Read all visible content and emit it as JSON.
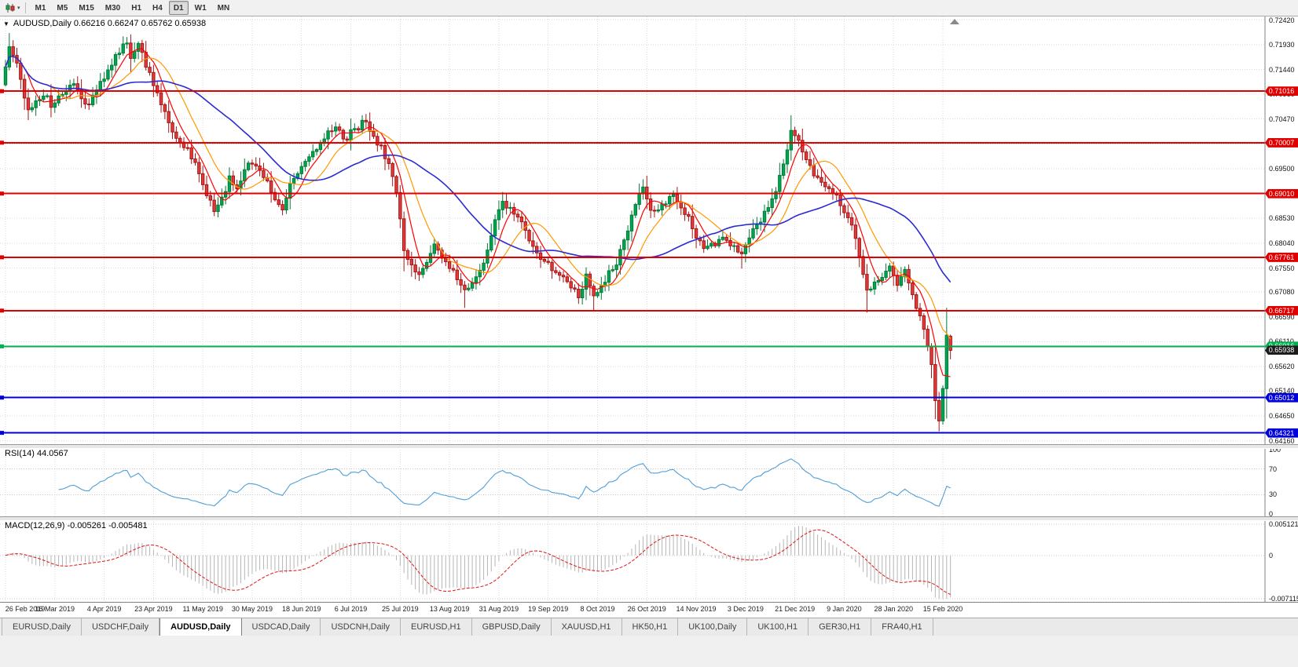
{
  "toolbar": {
    "timeframes": [
      "M1",
      "M5",
      "M15",
      "M30",
      "H1",
      "H4",
      "D1",
      "W1",
      "MN"
    ],
    "active_timeframe": "D1"
  },
  "icons": {
    "chart_menu": "▼",
    "tool_caret": "▾"
  },
  "chart_data": {
    "type": "candlestick",
    "symbol": "AUDUSD",
    "period": "Daily",
    "title": "AUDUSD,Daily 0.66216 0.66247 0.65762 0.65938",
    "ylim": [
      0.641,
      0.7248
    ],
    "num_candles": 250,
    "candles_per_x_label": 13,
    "x_labels": [
      "26 Feb 2019",
      "16 Mar 2019",
      "4 Apr 2019",
      "23 Apr 2019",
      "11 May 2019",
      "30 May 2019",
      "18 Jun 2019",
      "6 Jul 2019",
      "25 Jul 2019",
      "13 Aug 2019",
      "31 Aug 2019",
      "19 Sep 2019",
      "8 Oct 2019",
      "26 Oct 2019",
      "14 Nov 2019",
      "3 Dec 2019",
      "21 Dec 2019",
      "9 Jan 2020",
      "28 Jan 2020",
      "15 Feb 2020"
    ],
    "y_ticks": [
      "0.72420",
      "0.71930",
      "0.71440",
      "0.70960",
      "0.70470",
      "0.69980",
      "0.69500",
      "0.69010",
      "0.68530",
      "0.68040",
      "0.67550",
      "0.67080",
      "0.66590",
      "0.66110",
      "0.65620",
      "0.65140",
      "0.64650",
      "0.64160"
    ],
    "close_anchors": [
      [
        0,
        0.715
      ],
      [
        1,
        0.7185
      ],
      [
        3,
        0.7155
      ],
      [
        5,
        0.7088
      ],
      [
        6,
        0.7062
      ],
      [
        8,
        0.708
      ],
      [
        10,
        0.7098
      ],
      [
        12,
        0.7075
      ],
      [
        14,
        0.709
      ],
      [
        16,
        0.7108
      ],
      [
        18,
        0.7118
      ],
      [
        20,
        0.7082
      ],
      [
        22,
        0.7072
      ],
      [
        24,
        0.7105
      ],
      [
        26,
        0.7128
      ],
      [
        28,
        0.7155
      ],
      [
        30,
        0.718
      ],
      [
        32,
        0.7198
      ],
      [
        33,
        0.7172
      ],
      [
        35,
        0.719
      ],
      [
        37,
        0.7155
      ],
      [
        39,
        0.7112
      ],
      [
        41,
        0.7072
      ],
      [
        43,
        0.704
      ],
      [
        45,
        0.7012
      ],
      [
        47,
        0.6995
      ],
      [
        49,
        0.6975
      ],
      [
        51,
        0.6938
      ],
      [
        53,
        0.6898
      ],
      [
        55,
        0.6868
      ],
      [
        57,
        0.6888
      ],
      [
        59,
        0.693
      ],
      [
        61,
        0.6915
      ],
      [
        63,
        0.6945
      ],
      [
        65,
        0.6965
      ],
      [
        67,
        0.6942
      ],
      [
        69,
        0.6922
      ],
      [
        71,
        0.6895
      ],
      [
        73,
        0.6872
      ],
      [
        75,
        0.6918
      ],
      [
        77,
        0.6938
      ],
      [
        79,
        0.6962
      ],
      [
        81,
        0.6985
      ],
      [
        83,
        0.7002
      ],
      [
        85,
        0.7018
      ],
      [
        87,
        0.7038
      ],
      [
        89,
        0.7002
      ],
      [
        91,
        0.7022
      ],
      [
        93,
        0.7032
      ],
      [
        95,
        0.7045
      ],
      [
        97,
        0.7012
      ],
      [
        99,
        0.699
      ],
      [
        101,
        0.6958
      ],
      [
        103,
        0.6902
      ],
      [
        105,
        0.6795
      ],
      [
        107,
        0.6758
      ],
      [
        109,
        0.6742
      ],
      [
        111,
        0.6772
      ],
      [
        113,
        0.6798
      ],
      [
        115,
        0.678
      ],
      [
        117,
        0.6755
      ],
      [
        119,
        0.6735
      ],
      [
        121,
        0.6712
      ],
      [
        123,
        0.6728
      ],
      [
        125,
        0.6745
      ],
      [
        127,
        0.6788
      ],
      [
        129,
        0.6855
      ],
      [
        131,
        0.6888
      ],
      [
        133,
        0.687
      ],
      [
        135,
        0.685
      ],
      [
        137,
        0.683
      ],
      [
        139,
        0.6795
      ],
      [
        141,
        0.6772
      ],
      [
        143,
        0.676
      ],
      [
        145,
        0.675
      ],
      [
        147,
        0.6735
      ],
      [
        149,
        0.672
      ],
      [
        151,
        0.6702
      ],
      [
        153,
        0.6738
      ],
      [
        155,
        0.67
      ],
      [
        157,
        0.6718
      ],
      [
        159,
        0.6745
      ],
      [
        161,
        0.6765
      ],
      [
        163,
        0.6805
      ],
      [
        165,
        0.6855
      ],
      [
        167,
        0.6898
      ],
      [
        168,
        0.692
      ],
      [
        170,
        0.6862
      ],
      [
        172,
        0.6875
      ],
      [
        174,
        0.6885
      ],
      [
        176,
        0.6898
      ],
      [
        178,
        0.6875
      ],
      [
        180,
        0.685
      ],
      [
        182,
        0.682
      ],
      [
        184,
        0.6792
      ],
      [
        186,
        0.68
      ],
      [
        188,
        0.6806
      ],
      [
        190,
        0.6812
      ],
      [
        192,
        0.6796
      ],
      [
        194,
        0.6786
      ],
      [
        196,
        0.6812
      ],
      [
        198,
        0.684
      ],
      [
        200,
        0.686
      ],
      [
        202,
        0.6885
      ],
      [
        204,
        0.6932
      ],
      [
        206,
        0.699
      ],
      [
        207,
        0.7022
      ],
      [
        209,
        0.7
      ],
      [
        211,
        0.6962
      ],
      [
        213,
        0.6938
      ],
      [
        215,
        0.6928
      ],
      [
        217,
        0.6906
      ],
      [
        219,
        0.6896
      ],
      [
        221,
        0.6866
      ],
      [
        223,
        0.6836
      ],
      [
        225,
        0.678
      ],
      [
        227,
        0.6715
      ],
      [
        229,
        0.6722
      ],
      [
        231,
        0.674
      ],
      [
        233,
        0.6755
      ],
      [
        235,
        0.672
      ],
      [
        237,
        0.6748
      ],
      [
        239,
        0.67
      ],
      [
        241,
        0.666
      ],
      [
        243,
        0.66
      ],
      [
        244,
        0.656
      ],
      [
        245,
        0.6495
      ],
      [
        246,
        0.6455
      ],
      [
        247,
        0.652
      ],
      [
        248,
        0.6618
      ],
      [
        249,
        0.65938
      ]
    ],
    "high_overrides": [
      [
        32,
        0.7207
      ],
      [
        95,
        0.7048
      ],
      [
        168,
        0.6929
      ],
      [
        207,
        0.7032
      ]
    ],
    "low_overrides": [
      [
        6,
        0.7045
      ],
      [
        55,
        0.6862
      ],
      [
        107,
        0.6738
      ],
      [
        121,
        0.6677
      ],
      [
        155,
        0.667
      ],
      [
        194,
        0.6754
      ],
      [
        227,
        0.6668
      ],
      [
        246,
        0.6435
      ]
    ],
    "last_candle": {
      "open": 0.66216,
      "high": 0.66247,
      "low": 0.65762,
      "close": 0.65938
    },
    "colors": {
      "background": "#ffffff",
      "grid": "#dadada",
      "axis_border": "#808080",
      "up": "#00a650",
      "up_border": "#027a36",
      "down": "#e23b3b",
      "down_border": "#a31515"
    },
    "moving_averages": [
      {
        "name": "fast",
        "period": 6,
        "color": "#ff0000"
      },
      {
        "name": "medium",
        "period": 13,
        "color": "#ff9900"
      },
      {
        "name": "slow",
        "period": 34,
        "color": "#2b2bd4"
      }
    ],
    "h_lines": [
      {
        "value": 0.71016,
        "label": "0.71016",
        "color": "#e00000",
        "width": 2
      },
      {
        "value": 0.70007,
        "label": "0.70007",
        "color": "#e00000",
        "width": 2
      },
      {
        "value": 0.6901,
        "label": "0.69010",
        "color": "#e00000",
        "width": 2
      },
      {
        "value": 0.67761,
        "label": "0.67761",
        "color": "#e00000",
        "width": 2
      },
      {
        "value": 0.66717,
        "label": "0.66717",
        "color": "#e00000",
        "width": 2
      },
      {
        "value": 0.66016,
        "label": "0.66016",
        "color": "#00b050",
        "width": 2
      },
      {
        "value": 0.65012,
        "label": "0.65012",
        "color": "#0000dd",
        "width": 2
      },
      {
        "value": 0.64321,
        "label": "0.64321",
        "color": "#0000dd",
        "width": 2
      }
    ],
    "current_price_flag": {
      "value": 0.65938,
      "label": "0.65938",
      "color": "#1b1b1b"
    },
    "rsi": {
      "label": "RSI(14) 44.0567",
      "period": 14,
      "value": 44.0567,
      "ylim": [
        0,
        100
      ],
      "ticks": [
        "100",
        "70",
        "30",
        "0"
      ],
      "levels": [
        70,
        30
      ],
      "line_color": "#4f9fd8"
    },
    "macd": {
      "label": "MACD(12,26,9) -0.005261 -0.005481",
      "fast": 12,
      "slow": 26,
      "signal": 9,
      "macd_value": -0.005261,
      "signal_value": -0.005481,
      "ylim": [
        -0.007115,
        0.005121
      ],
      "ticks": [
        "0.005121",
        "0",
        "-0.007115"
      ],
      "hist_color": "#b5b5b5",
      "signal_color": "#e01515"
    }
  },
  "tabs": {
    "items": [
      "EURUSD,Daily",
      "USDCHF,Daily",
      "AUDUSD,Daily",
      "USDCAD,Daily",
      "USDCNH,Daily",
      "EURUSD,H1",
      "GBPUSD,Daily",
      "XAUUSD,H1",
      "HK50,H1",
      "UK100,Daily",
      "UK100,H1",
      "GER30,H1",
      "FRA40,H1"
    ],
    "active": "AUDUSD,Daily"
  }
}
